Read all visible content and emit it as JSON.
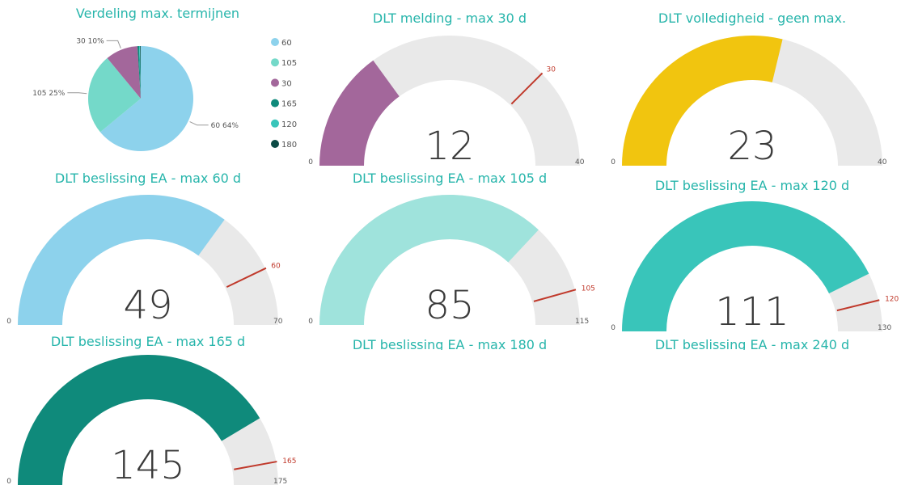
{
  "chart_data": [
    {
      "type": "pie",
      "title": "Verdeling max. termijnen",
      "categories": [
        "60",
        "105",
        "30",
        "165",
        "120",
        "180"
      ],
      "values": [
        64,
        25,
        10,
        0.5,
        0.3,
        0.2
      ],
      "value_labels": [
        "60 64%",
        "105 25%",
        "30 10%",
        null,
        null,
        null
      ],
      "colors": [
        "#8dd2ec",
        "#74d9c9",
        "#a3679b",
        "#0f8a7b",
        "#39c5ba",
        "#0b4a44"
      ],
      "legend": "right"
    },
    {
      "type": "gauge",
      "title": "DLT melding - max 30 d",
      "value": 12,
      "ylim": [
        0,
        40
      ],
      "target": 30,
      "color": "#a3679b"
    },
    {
      "type": "gauge",
      "title": "DLT volledigheid - geen max.",
      "value": 23,
      "ylim": [
        0,
        40
      ],
      "color": "#f1c50f"
    },
    {
      "type": "gauge",
      "title": "DLT beslissing EA - max 60 d",
      "value": 49,
      "ylim": [
        0,
        70
      ],
      "target": 60,
      "color": "#8dd2ec"
    },
    {
      "type": "gauge",
      "title": "DLT beslissing EA - max 105 d",
      "value": 85,
      "ylim": [
        0,
        115
      ],
      "target": 105,
      "color": "#9fe3dc"
    },
    {
      "type": "gauge",
      "title": "DLT beslissing EA - max 120 d",
      "value": 111,
      "ylim": [
        0,
        130
      ],
      "target": 120,
      "color": "#39c5ba"
    },
    {
      "type": "gauge",
      "title": "DLT beslissing EA - max 165 d",
      "value": 145,
      "ylim": [
        0,
        175
      ],
      "target": 165,
      "color": "#0f8a7b"
    },
    {
      "type": "gauge",
      "title": "DLT beslissing EA - max 180 d"
    },
    {
      "type": "gauge",
      "title": "DLT beslissing EA - max 240 d"
    }
  ]
}
